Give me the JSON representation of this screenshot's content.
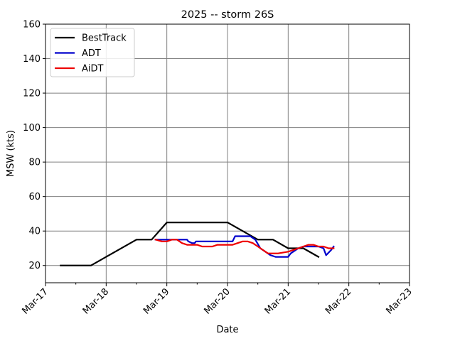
{
  "chart_data": {
    "type": "line",
    "title": "2025 -- storm 26S",
    "xlabel": "Date",
    "ylabel": "MSW (kts)",
    "xlim": [
      "2025-03-17",
      "2025-03-23"
    ],
    "ylim": [
      10,
      160
    ],
    "yticks": [
      20,
      40,
      60,
      80,
      100,
      120,
      140,
      160
    ],
    "xticks": [
      {
        "date": "2025-03-17",
        "label": "Mar-17"
      },
      {
        "date": "2025-03-18",
        "label": "Mar-18"
      },
      {
        "date": "2025-03-19",
        "label": "Mar-19"
      },
      {
        "date": "2025-03-20",
        "label": "Mar-20"
      },
      {
        "date": "2025-03-21",
        "label": "Mar-21"
      },
      {
        "date": "2025-03-22",
        "label": "Mar-22"
      },
      {
        "date": "2025-03-23",
        "label": "Mar-23"
      }
    ],
    "grid": true,
    "legend_position": "top-left",
    "series": [
      {
        "name": "BestTrack",
        "color": "#000000",
        "points": [
          [
            "2025-03-17 06:00",
            20
          ],
          [
            "2025-03-17 18:00",
            20
          ],
          [
            "2025-03-18 00:00",
            25
          ],
          [
            "2025-03-18 12:00",
            35
          ],
          [
            "2025-03-18 18:00",
            35
          ],
          [
            "2025-03-19 00:00",
            45
          ],
          [
            "2025-03-19 12:00",
            45
          ],
          [
            "2025-03-20 00:00",
            45
          ],
          [
            "2025-03-20 06:00",
            40
          ],
          [
            "2025-03-20 12:00",
            35
          ],
          [
            "2025-03-20 18:00",
            35
          ],
          [
            "2025-03-21 00:00",
            30
          ],
          [
            "2025-03-21 06:00",
            30
          ],
          [
            "2025-03-21 12:00",
            25
          ]
        ]
      },
      {
        "name": "ADT",
        "color": "#0000cc",
        "points": [
          [
            "2025-03-18 19:30",
            35
          ],
          [
            "2025-03-19 00:00",
            35
          ],
          [
            "2025-03-19 08:00",
            35
          ],
          [
            "2025-03-19 08:30",
            34
          ],
          [
            "2025-03-19 10:00",
            33
          ],
          [
            "2025-03-19 11:00",
            33
          ],
          [
            "2025-03-19 11:30",
            34
          ],
          [
            "2025-03-19 20:00",
            34
          ],
          [
            "2025-03-20 00:00",
            34
          ],
          [
            "2025-03-20 02:00",
            34
          ],
          [
            "2025-03-20 03:00",
            37
          ],
          [
            "2025-03-20 09:00",
            37
          ],
          [
            "2025-03-20 11:00",
            35
          ],
          [
            "2025-03-20 13:00",
            30
          ],
          [
            "2025-03-20 15:00",
            28
          ],
          [
            "2025-03-20 17:00",
            26
          ],
          [
            "2025-03-20 19:00",
            25
          ],
          [
            "2025-03-21 00:00",
            25
          ],
          [
            "2025-03-21 01:00",
            27
          ],
          [
            "2025-03-21 04:00",
            30
          ],
          [
            "2025-03-21 06:00",
            31
          ],
          [
            "2025-03-21 09:00",
            31
          ],
          [
            "2025-03-21 12:00",
            31
          ],
          [
            "2025-03-21 14:00",
            30
          ],
          [
            "2025-03-21 15:00",
            26
          ],
          [
            "2025-03-21 17:00",
            29
          ],
          [
            "2025-03-21 18:00",
            31
          ]
        ]
      },
      {
        "name": "AiDT",
        "color": "#ee0000",
        "points": [
          [
            "2025-03-18 19:30",
            35
          ],
          [
            "2025-03-18 22:00",
            34
          ],
          [
            "2025-03-19 00:00",
            34
          ],
          [
            "2025-03-19 02:00",
            35
          ],
          [
            "2025-03-19 04:00",
            35
          ],
          [
            "2025-03-19 06:00",
            33
          ],
          [
            "2025-03-19 08:00",
            32
          ],
          [
            "2025-03-19 10:00",
            32
          ],
          [
            "2025-03-19 12:00",
            32
          ],
          [
            "2025-03-19 14:00",
            31
          ],
          [
            "2025-03-19 18:00",
            31
          ],
          [
            "2025-03-19 20:00",
            32
          ],
          [
            "2025-03-20 00:00",
            32
          ],
          [
            "2025-03-20 02:00",
            32
          ],
          [
            "2025-03-20 04:00",
            33
          ],
          [
            "2025-03-20 06:00",
            34
          ],
          [
            "2025-03-20 08:00",
            34
          ],
          [
            "2025-03-20 10:00",
            33
          ],
          [
            "2025-03-20 12:00",
            31
          ],
          [
            "2025-03-20 14:00",
            29
          ],
          [
            "2025-03-20 16:00",
            27
          ],
          [
            "2025-03-20 20:00",
            27
          ],
          [
            "2025-03-21 00:00",
            28
          ],
          [
            "2025-03-21 02:00",
            29
          ],
          [
            "2025-03-21 04:00",
            30
          ],
          [
            "2025-03-21 06:00",
            31
          ],
          [
            "2025-03-21 08:00",
            32
          ],
          [
            "2025-03-21 10:00",
            32
          ],
          [
            "2025-03-21 12:00",
            31
          ],
          [
            "2025-03-21 14:00",
            31
          ],
          [
            "2025-03-21 16:00",
            30
          ],
          [
            "2025-03-21 18:00",
            30
          ]
        ]
      }
    ]
  }
}
